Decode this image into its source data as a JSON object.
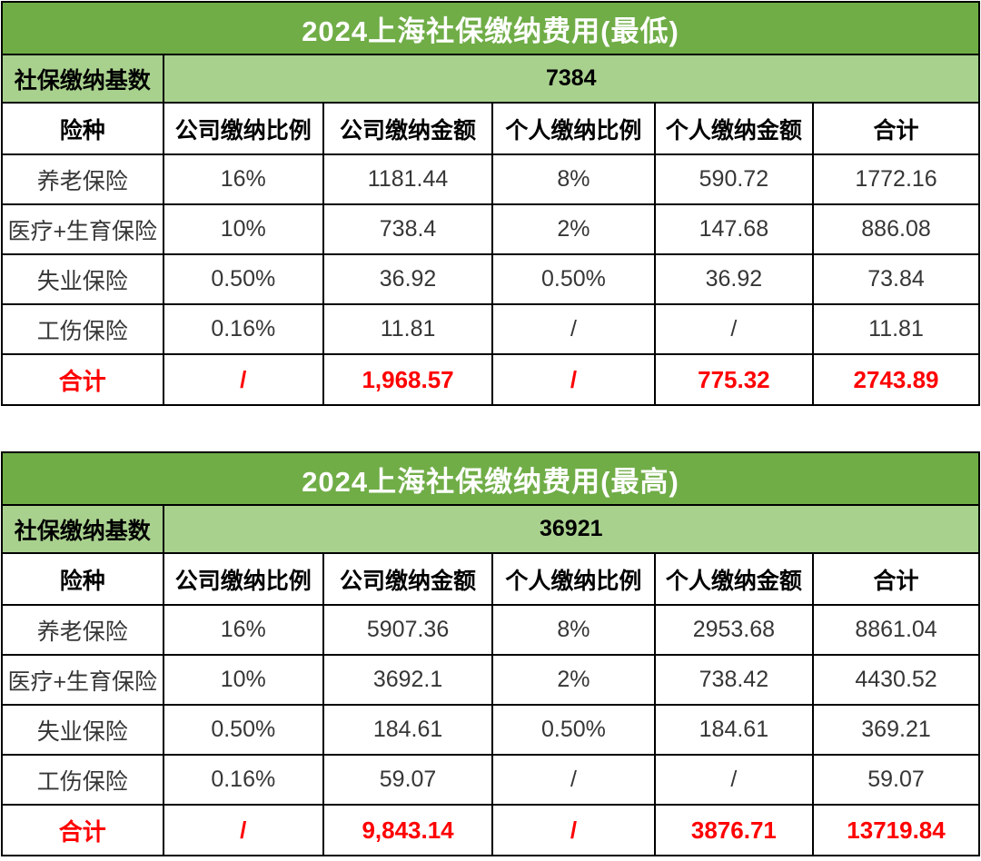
{
  "colors": {
    "title_bg": "#70AD47",
    "base_row_bg": "#A9D18E",
    "border": "#000000",
    "title_text": "#FFFFFF",
    "data_text": "#363636",
    "total_text": "#FF0000"
  },
  "chart_data": [
    {
      "type": "table",
      "title": "2024上海社保缴纳费用(最低)",
      "base": {
        "label": "社保缴纳基数",
        "value": "7384"
      },
      "columns": [
        "险种",
        "公司缴纳比例",
        "公司缴纳金额",
        "个人缴纳比例",
        "个人缴纳金额",
        "合计"
      ],
      "rows": [
        [
          "养老保险",
          "16%",
          "1181.44",
          "8%",
          "590.72",
          "1772.16"
        ],
        [
          "医疗+生育保险",
          "10%",
          "738.4",
          "2%",
          "147.68",
          "886.08"
        ],
        [
          "失业保险",
          "0.50%",
          "36.92",
          "0.50%",
          "36.92",
          "73.84"
        ],
        [
          "工伤保险",
          "0.16%",
          "11.81",
          "/",
          "/",
          "11.81"
        ]
      ],
      "total": [
        "合计",
        "/",
        "1,968.57",
        "/",
        "775.32",
        "2743.89"
      ]
    },
    {
      "type": "table",
      "title": "2024上海社保缴纳费用(最高)",
      "base": {
        "label": "社保缴纳基数",
        "value": "36921"
      },
      "columns": [
        "险种",
        "公司缴纳比例",
        "公司缴纳金额",
        "个人缴纳比例",
        "个人缴纳金额",
        "合计"
      ],
      "rows": [
        [
          "养老保险",
          "16%",
          "5907.36",
          "8%",
          "2953.68",
          "8861.04"
        ],
        [
          "医疗+生育保险",
          "10%",
          "3692.1",
          "2%",
          "738.42",
          "4430.52"
        ],
        [
          "失业保险",
          "0.50%",
          "184.61",
          "0.50%",
          "184.61",
          "369.21"
        ],
        [
          "工伤保险",
          "0.16%",
          "59.07",
          "/",
          "/",
          "59.07"
        ]
      ],
      "total": [
        "合计",
        "/",
        "9,843.14",
        "/",
        "3876.71",
        "13719.84"
      ]
    }
  ]
}
